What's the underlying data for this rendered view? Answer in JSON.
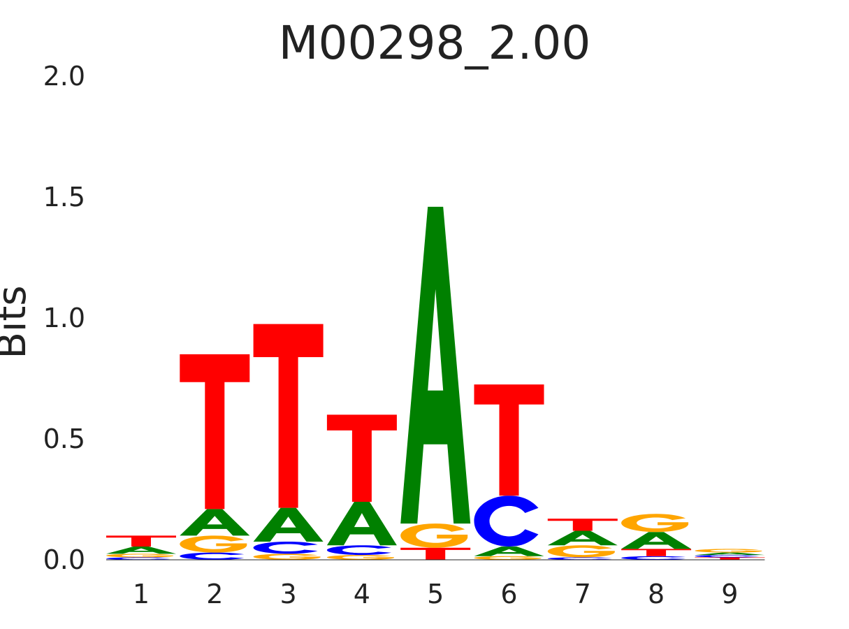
{
  "chart_data": {
    "type": "sequence-logo",
    "title": "M00298_2.00",
    "ylabel": "Bits",
    "xlabel": "",
    "ylim": [
      0,
      2.0
    ],
    "yticks": [
      "0.0",
      "0.5",
      "1.0",
      "1.5",
      "2.0"
    ],
    "positions": [
      "1",
      "2",
      "3",
      "4",
      "5",
      "6",
      "7",
      "8",
      "9"
    ],
    "colors": {
      "A": "#008000",
      "C": "#0000ff",
      "G": "#ffa500",
      "T": "#ff0000"
    },
    "stacks": [
      [
        {
          "base": "C",
          "bits": 0.01
        },
        {
          "base": "G",
          "bits": 0.015
        },
        {
          "base": "A",
          "bits": 0.03
        },
        {
          "base": "T",
          "bits": 0.045
        }
      ],
      [
        {
          "base": "C",
          "bits": 0.03
        },
        {
          "base": "G",
          "bits": 0.07
        },
        {
          "base": "A",
          "bits": 0.11
        },
        {
          "base": "T",
          "bits": 0.64
        }
      ],
      [
        {
          "base": "G",
          "bits": 0.025
        },
        {
          "base": "C",
          "bits": 0.05
        },
        {
          "base": "A",
          "bits": 0.14
        },
        {
          "base": "T",
          "bits": 0.76
        }
      ],
      [
        {
          "base": "G",
          "bits": 0.02
        },
        {
          "base": "C",
          "bits": 0.04
        },
        {
          "base": "A",
          "bits": 0.18
        },
        {
          "base": "T",
          "bits": 0.36
        }
      ],
      [
        {
          "base": "T",
          "bits": 0.05
        },
        {
          "base": "G",
          "bits": 0.1
        },
        {
          "base": "A",
          "bits": 1.31
        }
      ],
      [
        {
          "base": "G",
          "bits": 0.015
        },
        {
          "base": "A",
          "bits": 0.04
        },
        {
          "base": "C",
          "bits": 0.21
        },
        {
          "base": "T",
          "bits": 0.46
        }
      ],
      [
        {
          "base": "C",
          "bits": 0.01
        },
        {
          "base": "G",
          "bits": 0.05
        },
        {
          "base": "A",
          "bits": 0.06
        },
        {
          "base": "T",
          "bits": 0.05
        }
      ],
      [
        {
          "base": "C",
          "bits": 0.015
        },
        {
          "base": "T",
          "bits": 0.03
        },
        {
          "base": "A",
          "bits": 0.07
        },
        {
          "base": "G",
          "bits": 0.075
        }
      ],
      [
        {
          "base": "T",
          "bits": 0.01
        },
        {
          "base": "C",
          "bits": 0.01
        },
        {
          "base": "A",
          "bits": 0.01
        },
        {
          "base": "G",
          "bits": 0.015
        }
      ]
    ]
  }
}
